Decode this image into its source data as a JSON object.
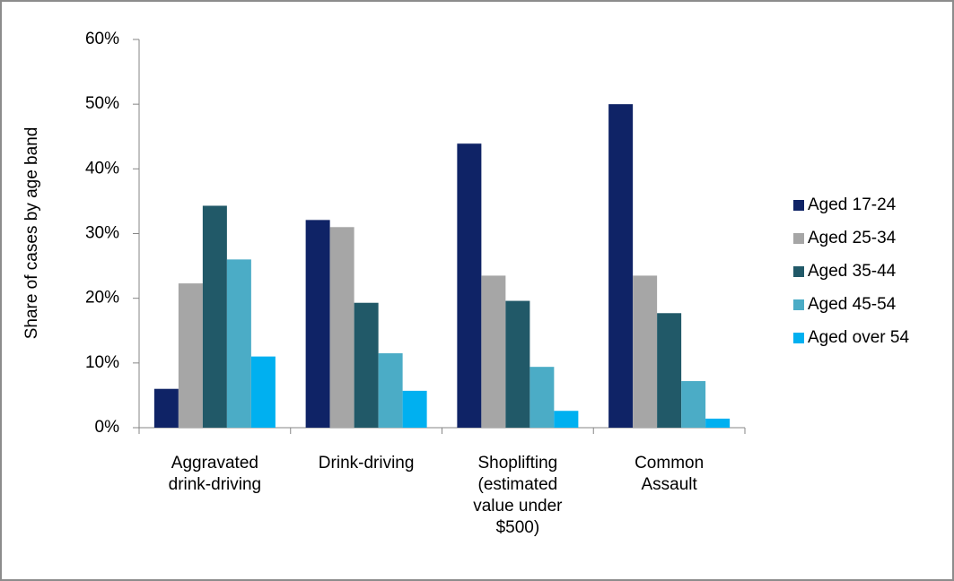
{
  "chart_data": {
    "type": "bar",
    "y_label": "Share of cases by age band",
    "categories": [
      "Aggravated drink-driving",
      "Drink-driving",
      "Shoplifting (estimated value under $500)",
      "Common Assault"
    ],
    "series": [
      {
        "name": "Aged 17-24",
        "color": "#0f2366",
        "values": [
          6,
          32.1,
          43.9,
          50
        ]
      },
      {
        "name": "Aged 25-34",
        "color": "#a6a6a6",
        "values": [
          22.3,
          31,
          23.5,
          23.5
        ]
      },
      {
        "name": "Aged 35-44",
        "color": "#215968",
        "values": [
          34.3,
          19.3,
          19.6,
          17.7
        ]
      },
      {
        "name": "Aged 45-54",
        "color": "#4bacc6",
        "values": [
          26,
          11.5,
          9.4,
          7.2
        ]
      },
      {
        "name": "Aged over 54",
        "color": "#00b0f0",
        "values": [
          11,
          5.7,
          2.6,
          1.4
        ]
      }
    ],
    "ylim": [
      0,
      60
    ],
    "yticks": [
      {
        "value": 0,
        "label": "0%"
      },
      {
        "value": 10,
        "label": "10%"
      },
      {
        "value": 20,
        "label": "20%"
      },
      {
        "value": 30,
        "label": "30%"
      },
      {
        "value": 40,
        "label": "40%"
      },
      {
        "value": 50,
        "label": "50%"
      },
      {
        "value": 60,
        "label": "60%"
      }
    ],
    "grid": false,
    "legend": "right"
  }
}
